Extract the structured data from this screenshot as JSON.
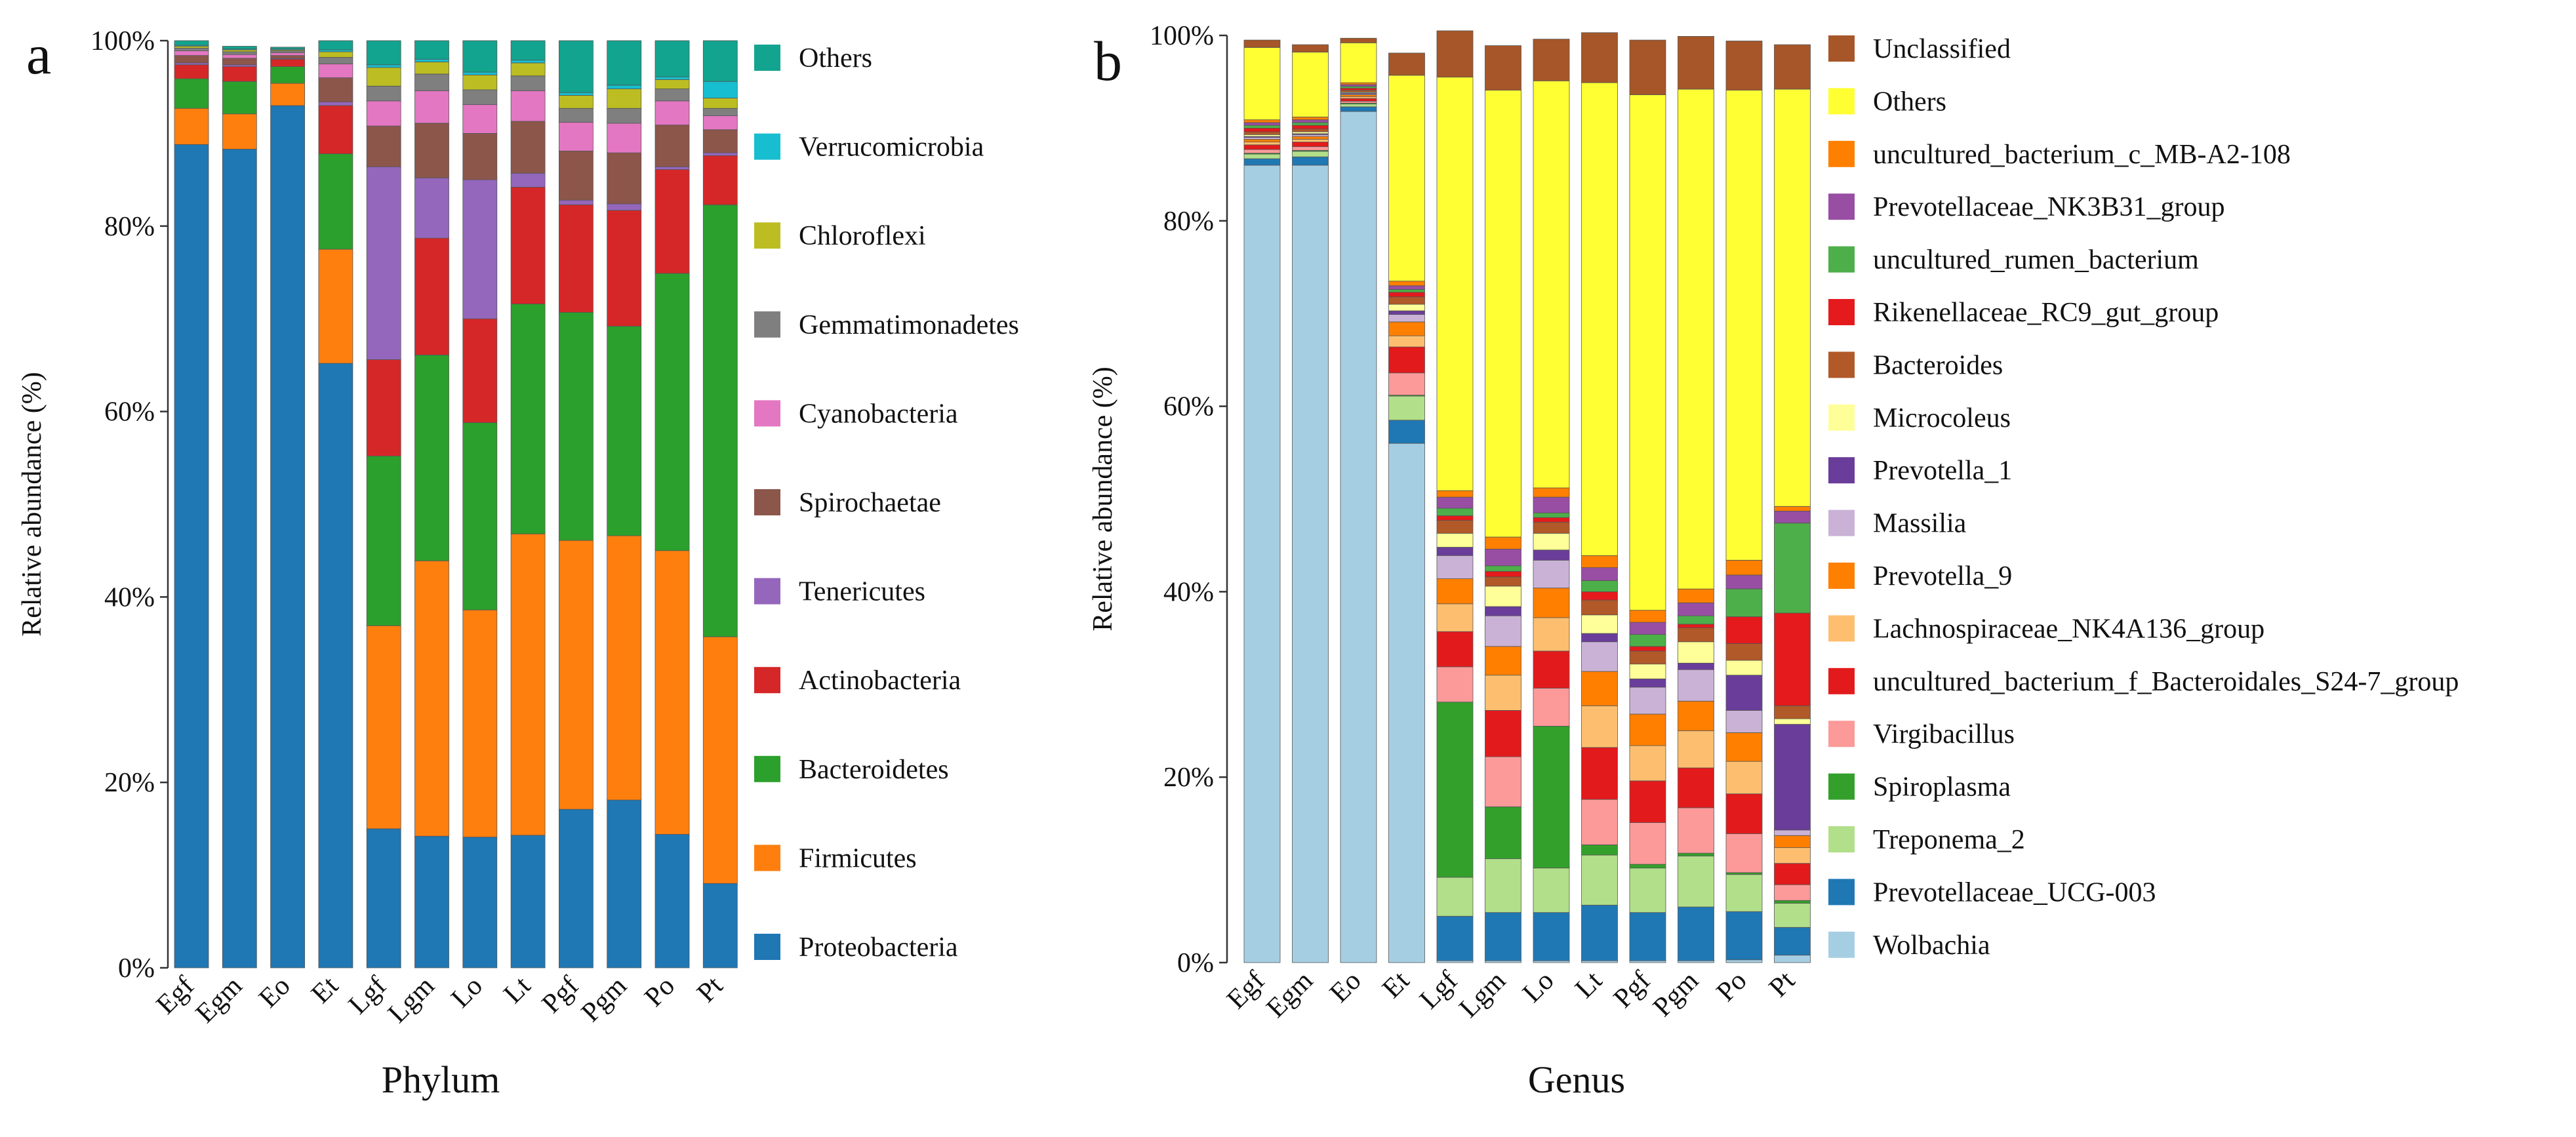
{
  "chart_data": [
    {
      "type": "bar",
      "stacked": true,
      "panel": "a",
      "xlabel": "Phylum",
      "ylabel": "Relative abundance (%)",
      "ylim": [
        0,
        100
      ],
      "y_ticks": [
        "0%",
        "20%",
        "40%",
        "60%",
        "80%",
        "100%"
      ],
      "categories": [
        "Egf",
        "Egm",
        "Eo",
        "Et",
        "Lgf",
        "Lgm",
        "Lo",
        "Lt",
        "Pgf",
        "Pgm",
        "Po",
        "Pt"
      ],
      "series": [
        {
          "name": "Proteobacteria",
          "color": "#1f77b4",
          "values": [
            88.8,
            88.3,
            93.0,
            65.2,
            15.0,
            14.2,
            14.1,
            14.3,
            17.1,
            18.1,
            14.4,
            9.1
          ]
        },
        {
          "name": "Firmicutes",
          "color": "#ff7f0e",
          "values": [
            3.9,
            3.8,
            2.4,
            12.3,
            21.9,
            29.7,
            24.5,
            32.5,
            29.0,
            28.5,
            30.6,
            26.6
          ]
        },
        {
          "name": "Bacteroidetes",
          "color": "#2ca02c",
          "values": [
            3.2,
            3.5,
            1.8,
            10.3,
            18.3,
            22.2,
            20.2,
            24.8,
            24.6,
            22.6,
            29.9,
            46.6
          ]
        },
        {
          "name": "Actinobacteria",
          "color": "#d62728",
          "values": [
            1.5,
            1.6,
            0.8,
            5.2,
            10.4,
            12.6,
            11.2,
            12.6,
            11.6,
            12.5,
            11.2,
            5.3
          ]
        },
        {
          "name": "Tenericutes",
          "color": "#9467bd",
          "values": [
            0.2,
            0.2,
            0.1,
            0.4,
            20.8,
            6.5,
            15.0,
            1.5,
            0.5,
            0.7,
            0.3,
            0.3
          ]
        },
        {
          "name": "Spirochaetae",
          "color": "#8c564b",
          "values": [
            0.8,
            0.7,
            0.3,
            2.6,
            4.4,
            5.9,
            5.0,
            5.6,
            5.3,
            5.5,
            4.5,
            2.5
          ]
        },
        {
          "name": "Cyanobacteria",
          "color": "#e377c2",
          "values": [
            0.5,
            0.4,
            0.3,
            1.5,
            2.7,
            3.5,
            3.1,
            3.3,
            3.1,
            3.2,
            2.6,
            1.5
          ]
        },
        {
          "name": "Gemmatimonadetes",
          "color": "#7f7f7f",
          "values": [
            0.3,
            0.3,
            0.2,
            0.7,
            1.6,
            1.8,
            1.6,
            1.6,
            1.5,
            1.6,
            1.3,
            0.8
          ]
        },
        {
          "name": "Chloroflexi",
          "color": "#bcbd22",
          "values": [
            0.2,
            0.2,
            0.1,
            0.6,
            2.0,
            1.3,
            1.6,
            1.4,
            1.4,
            2.1,
            1.0,
            1.1
          ]
        },
        {
          "name": "Verrucomicrobia",
          "color": "#17becf",
          "values": [
            0.1,
            0.1,
            0.1,
            0.2,
            0.3,
            0.3,
            0.3,
            0.3,
            0.3,
            0.4,
            0.3,
            1.8
          ]
        },
        {
          "name": "Others",
          "color": "#12a48e",
          "values": [
            0.5,
            0.3,
            0.2,
            1.0,
            2.6,
            2.0,
            3.4,
            2.1,
            5.6,
            4.8,
            3.9,
            4.4
          ]
        }
      ]
    },
    {
      "type": "bar",
      "stacked": true,
      "panel": "b",
      "xlabel": "Genus",
      "ylabel": "Relative abundance (%)",
      "ylim": [
        0,
        100
      ],
      "y_ticks": [
        "0%",
        "20%",
        "40%",
        "60%",
        "80%",
        "100%"
      ],
      "categories": [
        "Egf",
        "Egm",
        "Eo",
        "Et",
        "Lgf",
        "Lgm",
        "Lo",
        "Lt",
        "Pgf",
        "Pgm",
        "Po",
        "Pt"
      ],
      "series": [
        {
          "name": "Wolbachia",
          "color": "#a6cee3",
          "values": [
            86.0,
            86.0,
            91.8,
            56.0,
            0.2,
            0.2,
            0.2,
            0.2,
            0.2,
            0.2,
            0.3,
            0.8
          ]
        },
        {
          "name": "Prevotellaceae_UCG-003",
          "color": "#1f78b4",
          "values": [
            0.7,
            0.9,
            0.5,
            2.5,
            4.8,
            5.2,
            5.2,
            6.0,
            5.2,
            5.8,
            5.2,
            3.0
          ]
        },
        {
          "name": "Treponema_2",
          "color": "#b2df8a",
          "values": [
            0.5,
            0.6,
            0.3,
            2.6,
            4.2,
            5.8,
            4.8,
            5.4,
            4.8,
            5.5,
            4.0,
            2.6
          ]
        },
        {
          "name": "Spiroplasma",
          "color": "#33a02c",
          "values": [
            0.1,
            0.1,
            0.1,
            0.1,
            18.9,
            5.6,
            15.3,
            1.1,
            0.4,
            0.3,
            0.2,
            0.3
          ]
        },
        {
          "name": "Virgibacillus",
          "color": "#fb9a99",
          "values": [
            0.4,
            0.4,
            0.2,
            2.4,
            3.8,
            5.4,
            4.1,
            4.9,
            4.5,
            4.9,
            4.2,
            1.7
          ]
        },
        {
          "name": "uncultured_bacterium_f_Bacteroidales_S24-7_group",
          "color": "#e31a1c",
          "values": [
            0.5,
            0.5,
            0.3,
            2.8,
            3.8,
            5.0,
            4.0,
            5.6,
            4.5,
            4.3,
            4.3,
            2.3
          ]
        },
        {
          "name": "Lachnospiraceae_NK4A136_group",
          "color": "#fdbf6f",
          "values": [
            0.3,
            0.3,
            0.2,
            1.2,
            3.0,
            3.8,
            3.6,
            4.5,
            3.8,
            4.0,
            3.5,
            1.7
          ]
        },
        {
          "name": "Prevotella_9",
          "color": "#ff7f00",
          "values": [
            0.3,
            0.3,
            0.2,
            1.5,
            2.7,
            3.1,
            3.2,
            3.7,
            3.4,
            3.2,
            3.1,
            1.3
          ]
        },
        {
          "name": "Massilia",
          "color": "#cab2d6",
          "values": [
            0.2,
            0.2,
            0.1,
            0.8,
            2.5,
            3.3,
            3.0,
            3.2,
            2.9,
            3.4,
            2.4,
            0.6
          ]
        },
        {
          "name": "Prevotella_1",
          "color": "#6a3d9a",
          "values": [
            0.1,
            0.1,
            0.1,
            0.4,
            0.9,
            1.0,
            1.1,
            0.9,
            0.9,
            0.7,
            3.8,
            11.4
          ]
        },
        {
          "name": "Microcoleus",
          "color": "#ffff99",
          "values": [
            0.2,
            0.2,
            0.1,
            0.7,
            1.5,
            2.2,
            1.8,
            2.0,
            1.6,
            2.3,
            1.6,
            0.6
          ]
        },
        {
          "name": "Bacteroides",
          "color": "#b15928",
          "values": [
            0.3,
            0.3,
            0.2,
            0.8,
            1.4,
            1.0,
            1.2,
            1.6,
            1.4,
            1.5,
            1.8,
            1.4
          ]
        },
        {
          "name": "Rikenellaceae_RC9_gut_group",
          "color": "#e41a1c",
          "values": [
            0.4,
            0.4,
            0.2,
            0.5,
            0.5,
            0.6,
            0.5,
            0.9,
            0.5,
            0.4,
            2.9,
            10.0
          ]
        },
        {
          "name": "uncultured_rumen_bacterium",
          "color": "#4daf4a",
          "values": [
            0.3,
            0.3,
            0.2,
            0.3,
            0.8,
            0.6,
            0.5,
            1.2,
            1.3,
            0.9,
            3.0,
            9.7
          ]
        },
        {
          "name": "Prevotellaceae_NK3B31_group",
          "color": "#984ea3",
          "values": [
            0.3,
            0.3,
            0.2,
            0.4,
            1.2,
            1.8,
            1.7,
            1.4,
            1.3,
            1.4,
            1.5,
            1.3
          ]
        },
        {
          "name": "uncultured_bacterium_c_MB-A2-108",
          "color": "#ff7f00",
          "values": [
            0.3,
            0.3,
            0.2,
            0.5,
            0.7,
            1.3,
            1.0,
            1.3,
            1.3,
            1.5,
            1.6,
            0.5
          ]
        },
        {
          "name": "Others",
          "color": "#ffff33",
          "values": [
            7.8,
            7.0,
            4.3,
            22.2,
            44.6,
            48.2,
            43.9,
            51.0,
            55.6,
            53.9,
            50.7,
            45.0
          ]
        },
        {
          "name": "Unclassified",
          "color": "#a65628",
          "values": [
            0.8,
            0.8,
            0.5,
            2.4,
            5.0,
            4.8,
            4.5,
            5.4,
            5.9,
            5.7,
            5.3,
            4.8
          ]
        }
      ]
    }
  ]
}
